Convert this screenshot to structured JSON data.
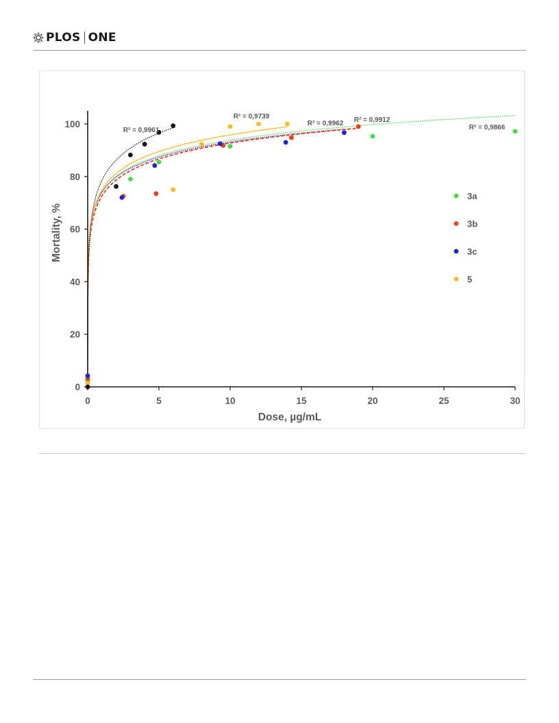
{
  "header": {
    "logo_left": "PLOS",
    "logo_right": "ONE",
    "logo_icon": "plos-sunburst-icon"
  },
  "colors": {
    "3a": "#3ce13c",
    "3b": "#f03c14",
    "3c": "#1e1ee6",
    "5": "#ffb81e",
    "unlabeled": "#141414",
    "axis": "#1a1a1a",
    "text": "#5b5b5b"
  },
  "chart_data": {
    "type": "scatter",
    "title": "",
    "xlabel": "Dose, µg/mL",
    "ylabel": "Mortality, %",
    "xlim": [
      0,
      30
    ],
    "ylim": [
      0,
      105
    ],
    "xticks": [
      0,
      5,
      10,
      15,
      20,
      25,
      30
    ],
    "yticks": [
      0,
      20,
      40,
      60,
      80,
      100
    ],
    "grid": false,
    "legend_position": "right",
    "legend": [
      "3a",
      "3b",
      "3c",
      "5"
    ],
    "series": [
      {
        "name": "3a",
        "color": "#3ce13c",
        "points": [
          [
            0,
            2
          ],
          [
            3,
            79
          ],
          [
            5,
            85.5
          ],
          [
            10,
            91.5
          ],
          [
            20,
            95.3
          ],
          [
            30,
            97.2
          ]
        ],
        "trendline": {
          "a": 74.12,
          "b": 8.55,
          "x_end": 30,
          "style": "dotted"
        },
        "r2_label": "R² = 0,9866"
      },
      {
        "name": "3b",
        "color": "#f03c14",
        "points": [
          [
            0,
            3
          ],
          [
            2.5,
            72.5
          ],
          [
            4.8,
            73.5
          ],
          [
            9.5,
            91.8
          ],
          [
            14.3,
            94.8
          ],
          [
            19,
            99
          ]
        ],
        "trendline": {
          "a": 72.64,
          "b": 8.73,
          "x_end": 19,
          "style": "dashed"
        },
        "r2_label": "R² = 0,9912"
      },
      {
        "name": "3c",
        "color": "#1e1ee6",
        "points": [
          [
            0,
            4.2
          ],
          [
            2.4,
            72
          ],
          [
            4.7,
            84.2
          ],
          [
            9.3,
            92.5
          ],
          [
            13.9,
            93
          ],
          [
            18,
            96.7
          ]
        ],
        "trendline": {
          "a": 74.05,
          "b": 8.29,
          "x_end": 18,
          "style": "dotted"
        },
        "r2_label": "R² = 0,9962"
      },
      {
        "name": "5",
        "color": "#ffb81e",
        "points": [
          [
            0,
            1.5
          ],
          [
            6,
            75
          ],
          [
            8,
            92.3
          ],
          [
            10,
            99
          ],
          [
            12,
            100
          ],
          [
            14,
            100
          ]
        ],
        "trendline": {
          "a": 74.87,
          "b": 9.1,
          "x_end": 14,
          "style": "solid"
        },
        "r2_label": "R² = 0,9739"
      },
      {
        "name": "",
        "color": "#141414",
        "points": [
          [
            0,
            0
          ],
          [
            2,
            76.2
          ],
          [
            3,
            88.2
          ],
          [
            4,
            92.3
          ],
          [
            5,
            96.8
          ],
          [
            6,
            99.3
          ]
        ],
        "trendline": {
          "a": 78.55,
          "b": 11.17,
          "x_end": 6,
          "style": "dotted"
        },
        "r2_label": "R² = 0,9961"
      }
    ]
  }
}
